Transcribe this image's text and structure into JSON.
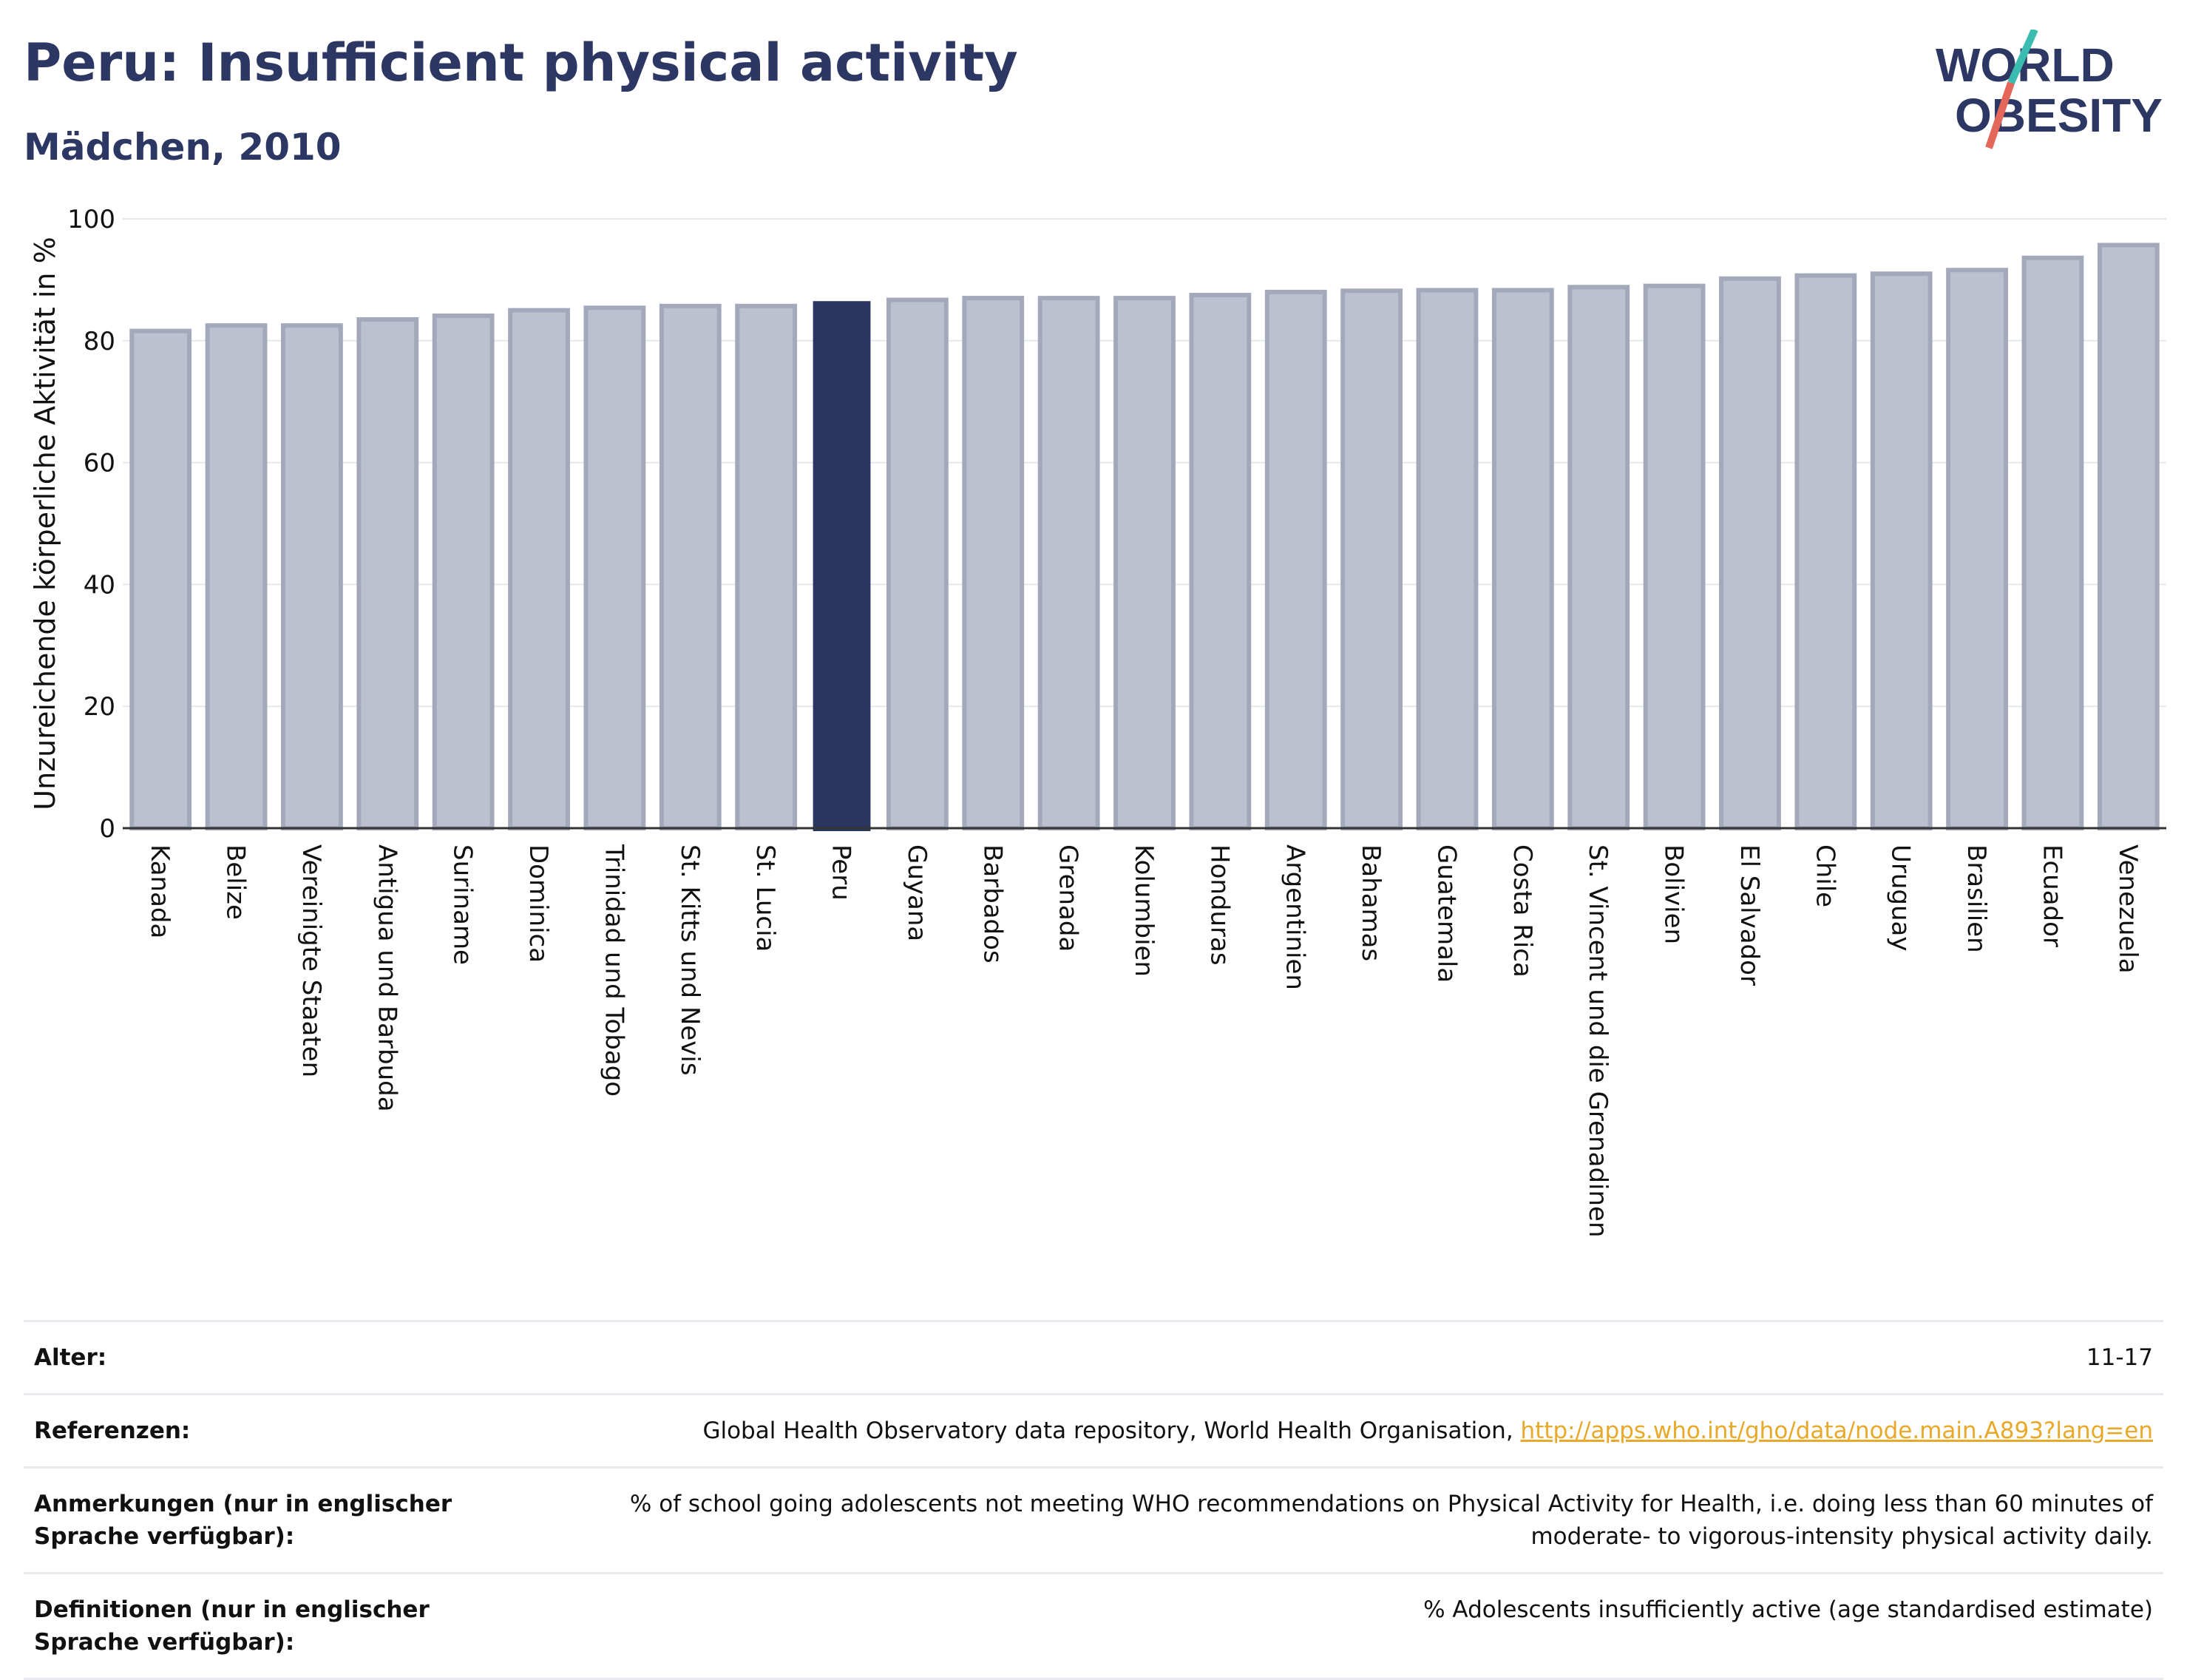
{
  "header": {
    "title": "Peru: Insufficient physical activity",
    "subtitle": "Mädchen, 2010"
  },
  "logo": {
    "line1": "WORLD",
    "line2": "OBESITY"
  },
  "colors": {
    "highlight": "#2a3560",
    "bar_fill": "#bdc1cf",
    "bar_stroke": "#a3a8bb",
    "grid": "#e6e8ee",
    "logo_text": "#2d3763",
    "logo_teal": "#3bbcb0",
    "logo_red": "#e4685a",
    "link": "#e8a92a"
  },
  "chart_data": {
    "type": "bar",
    "ylabel": "Unzureichende körperliche Aktivität in %",
    "ylim": [
      0,
      100
    ],
    "yticks": [
      0,
      20,
      40,
      60,
      80,
      100
    ],
    "highlight": "Peru",
    "grid": true,
    "categories": [
      "Kanada",
      "Belize",
      "Vereinigte Staaten",
      "Antigua und Barbuda",
      "Suriname",
      "Dominica",
      "Trinidad und Tobago",
      "St. Kitts und Nevis",
      "St. Lucia",
      "Peru",
      "Guyana",
      "Barbados",
      "Grenada",
      "Kolumbien",
      "Honduras",
      "Argentinien",
      "Bahamas",
      "Guatemala",
      "Costa Rica",
      "St. Vincent und die Grenadinen",
      "Bolivien",
      "El Salvador",
      "Chile",
      "Uruguay",
      "Brasilien",
      "Ecuador",
      "Venezuela"
    ],
    "values": [
      81.6,
      82.5,
      82.5,
      83.5,
      84.1,
      85.0,
      85.4,
      85.7,
      85.7,
      86.5,
      86.7,
      87.0,
      87.0,
      87.0,
      87.5,
      88.0,
      88.2,
      88.3,
      88.3,
      88.8,
      89.0,
      90.2,
      90.7,
      91.0,
      91.6,
      93.6,
      95.7
    ]
  },
  "meta": {
    "age_label": "Alter:",
    "age_value": "11-17",
    "refs_label": "Referenzen:",
    "refs_value": "Global Health Observatory data repository, World Health Organisation,",
    "refs_link": "http://apps.who.int/gho/data/node.main.A893?lang=en",
    "notes_label": "Anmerkungen (nur in englischer Sprache verfügbar):",
    "notes_value": "% of school going adolescents not meeting WHO recommendations on Physical Activity for Health, i.e. doing less than 60 minutes of moderate- to vigorous-intensity physical activity daily.",
    "defs_label": "Definitionen (nur in englischer Sprache verfügbar):",
    "defs_value": "% Adolescents insufficiently active (age standardised estimate)"
  }
}
